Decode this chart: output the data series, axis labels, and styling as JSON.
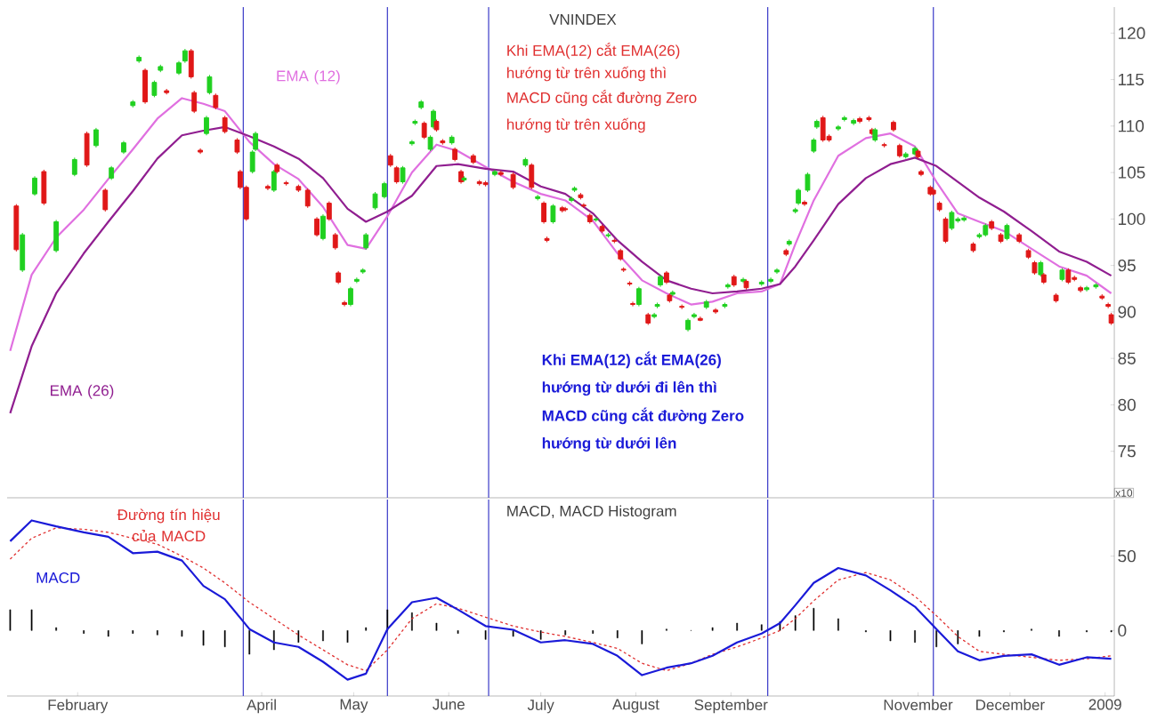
{
  "chart_data": [
    {
      "type": "candlestick",
      "title": "VNINDEX",
      "ylabel": "x10",
      "x": [
        "2008-01-12",
        "2008-01-14",
        "2008-01-18",
        "2008-01-21",
        "2008-01-25",
        "2008-01-31",
        "2008-02-04",
        "2008-02-07",
        "2008-02-10",
        "2008-02-12",
        "2008-02-16",
        "2008-02-19",
        "2008-02-21",
        "2008-02-23",
        "2008-02-26",
        "2008-02-28",
        "2008-03-01",
        "2008-03-05",
        "2008-03-07",
        "2008-03-09",
        "2008-03-10",
        "2008-03-12",
        "2008-03-14",
        "2008-03-15",
        "2008-03-17",
        "2008-03-20",
        "2008-03-24",
        "2008-03-25",
        "2008-03-27",
        "2008-03-29",
        "2008-03-30",
        "2008-04-03",
        "2008-04-05",
        "2008-04-06",
        "2008-04-09",
        "2008-04-13",
        "2008-04-16",
        "2008-04-19",
        "2008-04-21",
        "2008-04-23",
        "2008-04-25",
        "2008-04-26",
        "2008-04-28",
        "2008-04-30",
        "2008-05-02",
        "2008-05-04",
        "2008-05-05",
        "2008-05-08",
        "2008-05-11",
        "2008-05-13",
        "2008-05-15",
        "2008-05-17",
        "2008-05-20",
        "2008-05-21",
        "2008-05-23",
        "2008-05-24",
        "2008-05-26",
        "2008-05-27",
        "2008-05-28",
        "2008-05-30",
        "2008-06-02",
        "2008-06-03",
        "2008-06-05",
        "2008-06-06",
        "2008-06-09",
        "2008-06-11",
        "2008-06-13",
        "2008-06-16",
        "2008-06-18",
        "2008-06-22",
        "2008-06-26",
        "2008-06-28",
        "2008-06-30",
        "2008-07-02",
        "2008-07-03",
        "2008-07-05",
        "2008-07-08",
        "2008-07-09",
        "2008-07-11",
        "2008-07-12",
        "2008-07-14",
        "2008-07-15",
        "2008-07-17",
        "2008-07-19",
        "2008-07-21",
        "2008-07-23",
        "2008-07-25",
        "2008-07-27",
        "2008-07-28",
        "2008-07-30",
        "2008-07-31",
        "2008-08-02",
        "2008-08-05",
        "2008-08-07",
        "2008-08-08",
        "2008-08-09",
        "2008-08-11",
        "2008-08-12",
        "2008-08-13",
        "2008-08-16",
        "2008-08-18",
        "2008-08-20",
        "2008-08-22",
        "2008-08-24",
        "2008-08-27",
        "2008-08-30",
        "2008-08-31",
        "2008-09-02",
        "2008-09-05",
        "2008-09-06",
        "2008-09-11",
        "2008-09-14",
        "2008-09-16",
        "2008-09-19",
        "2008-09-20",
        "2008-09-22",
        "2008-09-23",
        "2008-09-25",
        "2008-09-26",
        "2008-09-28",
        "2008-09-29",
        "2008-10-01",
        "2008-10-03",
        "2008-10-06",
        "2008-10-08",
        "2008-10-11",
        "2008-10-13",
        "2008-10-16",
        "2008-10-17",
        "2008-10-18",
        "2008-10-21",
        "2008-10-24",
        "2008-10-26",
        "2008-10-28",
        "2008-10-31",
        "2008-11-01",
        "2008-11-02",
        "2008-11-05",
        "2008-11-06",
        "2008-11-08",
        "2008-11-10",
        "2008-11-12",
        "2008-11-14",
        "2008-11-16",
        "2008-11-19",
        "2008-11-21",
        "2008-11-23",
        "2008-11-25",
        "2008-11-28",
        "2008-11-30",
        "2008-12-04",
        "2008-12-07",
        "2008-12-09",
        "2008-12-11",
        "2008-12-12",
        "2008-12-16",
        "2008-12-18",
        "2008-12-20",
        "2008-12-22",
        "2008-12-24",
        "2008-12-26",
        "2008-12-29",
        "2008-12-31",
        "2009-01-02",
        "2009-01-03"
      ],
      "ohlc": [
        [
          101.4,
          101.6,
          96.5,
          96.7
        ],
        [
          94.5,
          98.5,
          94.3,
          98.3
        ],
        [
          102.7,
          104.6,
          102.5,
          104.4
        ],
        [
          105.1,
          105.3,
          101.5,
          101.7
        ],
        [
          96.6,
          99.9,
          96.4,
          99.7
        ],
        [
          104.8,
          106.6,
          104.6,
          106.4
        ],
        [
          109.2,
          109.4,
          105.6,
          105.8
        ],
        [
          107.9,
          109.8,
          107.7,
          109.6
        ],
        [
          103.1,
          103.3,
          100.8,
          101
        ],
        [
          104.4,
          105.7,
          104.2,
          105.5
        ],
        [
          107.2,
          108.4,
          107,
          108.2
        ],
        [
          112.2,
          112.8,
          112,
          112.6
        ],
        [
          117,
          117.6,
          116.8,
          117.4
        ],
        [
          116,
          116.2,
          112.4,
          112.6
        ],
        [
          113.3,
          114.9,
          113.1,
          114.7
        ],
        [
          116,
          116.6,
          115.8,
          116.4
        ],
        [
          113.8,
          114,
          113.4,
          113.6
        ],
        [
          115.7,
          117,
          115.5,
          116.8
        ],
        [
          117,
          118.3,
          116.8,
          118.1
        ],
        [
          118.1,
          118.3,
          115.1,
          115.3
        ],
        [
          113.6,
          113.8,
          111.4,
          111.6
        ],
        [
          107.4,
          107.6,
          107,
          107.2
        ],
        [
          109.2,
          111.1,
          109,
          110.9
        ],
        [
          113.6,
          115.5,
          113.4,
          115.3
        ],
        [
          113.3,
          113.5,
          111.8,
          112
        ],
        [
          110.9,
          111.1,
          109.2,
          109.4
        ],
        [
          108.5,
          108.7,
          107,
          107.2
        ],
        [
          105.1,
          105.3,
          103.2,
          103.4
        ],
        [
          103.4,
          103.6,
          99.8,
          100
        ],
        [
          105.1,
          107.4,
          104.9,
          107.2
        ],
        [
          107.5,
          109.4,
          107.3,
          109.2
        ],
        [
          103.5,
          103.7,
          103.1,
          103.3
        ],
        [
          103.1,
          105.3,
          102.9,
          105.1
        ],
        [
          105.8,
          106,
          104.9,
          105.1
        ],
        [
          103.9,
          104.1,
          103.6,
          103.8
        ],
        [
          103.5,
          103.7,
          102.9,
          103.1
        ],
        [
          103.1,
          103.3,
          101.2,
          101.4
        ],
        [
          100,
          100.2,
          98.1,
          98.3
        ],
        [
          97.9,
          100.5,
          97.7,
          100.3
        ],
        [
          101.7,
          101.9,
          99.8,
          100
        ],
        [
          98.3,
          98.5,
          96.7,
          96.9
        ],
        [
          94.2,
          94.4,
          93,
          93.2
        ],
        [
          91,
          91.2,
          90.6,
          90.8
        ],
        [
          90.8,
          92.7,
          90.6,
          92.5
        ],
        [
          93.3,
          93.7,
          93.1,
          93.5
        ],
        [
          94.3,
          94.7,
          94.1,
          94.5
        ],
        [
          96.9,
          98.5,
          96.7,
          98.3
        ],
        [
          101.2,
          102.9,
          101,
          102.7
        ],
        [
          102.4,
          104,
          102.2,
          103.8
        ],
        [
          106.8,
          107,
          105.6,
          105.8
        ],
        [
          105.5,
          105.7,
          103.8,
          104
        ],
        [
          104,
          105.7,
          103.8,
          105.5
        ],
        [
          108.1,
          108.5,
          107.9,
          108.3
        ],
        [
          110.3,
          110.7,
          110.1,
          110.5
        ],
        [
          112,
          112.8,
          111.8,
          112.6
        ],
        [
          110.3,
          110.5,
          108.6,
          108.8
        ],
        [
          107.5,
          109,
          107.3,
          108.8
        ],
        [
          109.9,
          111.8,
          109.7,
          111.6
        ],
        [
          110.5,
          110.7,
          109.4,
          109.6
        ],
        [
          108.4,
          108.6,
          108,
          108.2
        ],
        [
          108.2,
          109,
          108,
          108.8
        ],
        [
          107.5,
          107.7,
          106.2,
          106.4
        ],
        [
          105.1,
          105.3,
          103.8,
          104
        ],
        [
          104.2,
          104.6,
          104,
          104.4
        ],
        [
          106.8,
          107,
          105.9,
          106.1
        ],
        [
          104,
          104.2,
          103.6,
          103.8
        ],
        [
          103.9,
          104.1,
          103.5,
          103.7
        ],
        [
          104.8,
          105.3,
          104.6,
          105.1
        ],
        [
          105,
          105.2,
          104.6,
          104.8
        ],
        [
          104.8,
          105,
          103.2,
          103.4
        ],
        [
          105.8,
          106.6,
          105.6,
          106.4
        ],
        [
          105.8,
          106,
          103.2,
          103.4
        ],
        [
          102.2,
          102.6,
          102,
          102.4
        ],
        [
          101.7,
          101.9,
          99.5,
          99.7
        ],
        [
          97.9,
          98.1,
          97.5,
          97.7
        ],
        [
          99.7,
          101.6,
          99.5,
          101.4
        ],
        [
          101.2,
          101.4,
          100.7,
          100.9
        ],
        [
          101.1,
          101.3,
          100.8,
          101
        ],
        [
          102,
          102.4,
          101.8,
          102.2
        ],
        [
          103.1,
          103.5,
          102.9,
          103.3
        ],
        [
          102.6,
          102.8,
          102.1,
          102.3
        ],
        [
          101.5,
          101.7,
          101.2,
          101.4
        ],
        [
          100.4,
          100.6,
          99.5,
          99.7
        ],
        [
          99.9,
          100.2,
          99.7,
          100
        ],
        [
          99.2,
          99.4,
          98.5,
          98.7
        ],
        [
          98.2,
          98.5,
          98,
          98.3
        ],
        [
          97.7,
          97.9,
          97.4,
          97.6
        ],
        [
          96.6,
          96.8,
          95.5,
          95.7
        ],
        [
          94.6,
          94.8,
          94.3,
          94.5
        ],
        [
          93.1,
          93.3,
          92.8,
          93
        ],
        [
          90.9,
          91.1,
          90.6,
          90.8
        ],
        [
          90.8,
          92.7,
          90.6,
          92.5
        ],
        [
          89.7,
          89.9,
          88.6,
          88.8
        ],
        [
          89.5,
          89.9,
          89.3,
          89.7
        ],
        [
          90.6,
          91,
          90.4,
          90.8
        ],
        [
          92.9,
          94,
          92.7,
          93.8
        ],
        [
          94.2,
          94.4,
          93,
          93.2
        ],
        [
          91.8,
          92,
          91,
          91.2
        ],
        [
          91.9,
          92.3,
          91.7,
          92.1
        ],
        [
          90.6,
          90.8,
          90.3,
          90.5
        ],
        [
          88.1,
          89.3,
          87.9,
          89.1
        ],
        [
          89.5,
          89.9,
          89.3,
          89.7
        ],
        [
          89.3,
          89.5,
          89,
          89.1
        ],
        [
          90.5,
          91.3,
          90.3,
          91.1
        ],
        [
          90.2,
          90.4,
          89.8,
          90
        ],
        [
          90.6,
          91,
          90.4,
          90.8
        ],
        [
          92.7,
          93.1,
          92.5,
          92.9
        ],
        [
          93.8,
          94,
          92.7,
          92.9
        ],
        [
          93.3,
          93.7,
          93.1,
          93.5
        ],
        [
          93.3,
          93.5,
          92.4,
          92.6
        ],
        [
          93,
          93.4,
          92.8,
          93.2
        ],
        [
          93.3,
          93.7,
          93.1,
          93.5
        ],
        [
          94.3,
          94.7,
          94.1,
          94.5
        ],
        [
          96.6,
          96.8,
          96,
          96.2
        ],
        [
          97.3,
          97.8,
          97.1,
          97.6
        ],
        [
          100.8,
          101.2,
          100.6,
          101
        ],
        [
          101.7,
          103.3,
          101.5,
          103.1
        ],
        [
          101.8,
          102,
          101.4,
          101.6
        ],
        [
          103.1,
          105,
          102.9,
          104.8
        ],
        [
          107.3,
          108.7,
          107.1,
          108.5
        ],
        [
          109.9,
          110.7,
          109.7,
          110.5
        ],
        [
          110.9,
          111.1,
          108.3,
          108.5
        ],
        [
          108.9,
          109.1,
          108.3,
          108.5
        ],
        [
          109.7,
          110.1,
          109.5,
          109.9
        ],
        [
          110.7,
          111.1,
          110.5,
          110.9
        ],
        [
          110.3,
          110.8,
          110.1,
          110.6
        ],
        [
          110.8,
          111,
          110.3,
          110.5
        ],
        [
          110.9,
          111.1,
          110.5,
          110.7
        ],
        [
          109.6,
          109.8,
          109,
          109.2
        ],
        [
          108.5,
          109.8,
          108.3,
          109.6
        ],
        [
          108,
          108.2,
          107.7,
          107.9
        ],
        [
          110.4,
          110.6,
          109.4,
          109.6
        ],
        [
          107.9,
          108.1,
          106.6,
          106.8
        ],
        [
          106.7,
          107.2,
          106.5,
          107
        ],
        [
          107,
          107.8,
          106.8,
          107.6
        ],
        [
          107.3,
          107.5,
          106.5,
          106.7
        ],
        [
          105.1,
          105.3,
          104.6,
          104.8
        ],
        [
          103.4,
          103.6,
          102.5,
          102.7
        ],
        [
          103.1,
          103.3,
          102.5,
          102.7
        ],
        [
          101.7,
          101.9,
          100.8,
          101
        ],
        [
          100,
          100.2,
          97.4,
          97.6
        ],
        [
          99,
          100.9,
          98.8,
          100.7
        ],
        [
          99.8,
          100.2,
          99.6,
          100
        ],
        [
          99.9,
          100.3,
          99.7,
          100.1
        ],
        [
          97.3,
          97.5,
          96.4,
          96.6
        ],
        [
          98.1,
          98.5,
          97.9,
          98.3
        ],
        [
          98.3,
          99.5,
          98.1,
          99.3
        ],
        [
          99.7,
          99.9,
          98.8,
          99
        ],
        [
          98.3,
          98.5,
          97.4,
          97.6
        ],
        [
          97.9,
          99.5,
          97.7,
          99.3
        ],
        [
          98.3,
          98.5,
          97.4,
          97.6
        ],
        [
          96.6,
          96.8,
          95.7,
          95.9
        ],
        [
          95.3,
          95.5,
          94,
          94.2
        ],
        [
          94,
          95.5,
          93.8,
          95.3
        ],
        [
          94,
          94.2,
          93,
          93.2
        ],
        [
          91.8,
          92,
          91,
          91.2
        ],
        [
          93.5,
          94.7,
          93.3,
          94.5
        ],
        [
          94.5,
          94.7,
          93,
          93.2
        ],
        [
          93.7,
          93.9,
          93.3,
          93.5
        ],
        [
          92.6,
          92.8,
          92.1,
          92.3
        ],
        [
          92.4,
          92.8,
          92.2,
          92.6
        ],
        [
          92.7,
          93.1,
          92.5,
          92.9
        ],
        [
          91.7,
          91.9,
          91.3,
          91.5
        ],
        [
          90.8,
          91,
          90.4,
          90.6
        ],
        [
          89.7,
          89.9,
          88.6,
          88.8
        ]
      ],
      "colors": [
        "#e01818",
        "#20d020",
        "#20d020",
        "#e01818",
        "#20d020",
        "#20d020",
        "#e01818",
        "#20d020",
        "#e01818",
        "#20d020",
        "#20d020",
        "#20d020",
        "#20d020",
        "#e01818",
        "#20d020",
        "#20d020",
        "#e01818",
        "#20d020",
        "#20d020",
        "#e01818",
        "#e01818",
        "#e01818",
        "#20d020",
        "#20d020",
        "#e01818",
        "#e01818",
        "#e01818",
        "#e01818",
        "#e01818",
        "#20d020",
        "#20d020",
        "#e01818",
        "#20d020",
        "#e01818",
        "#e01818",
        "#e01818",
        "#e01818",
        "#e01818",
        "#20d020",
        "#e01818",
        "#e01818",
        "#e01818",
        "#e01818",
        "#20d020",
        "#20d020",
        "#20d020",
        "#20d020",
        "#20d020",
        "#20d020",
        "#e01818",
        "#e01818",
        "#20d020",
        "#20d020",
        "#20d020",
        "#20d020",
        "#e01818",
        "#20d020",
        "#20d020",
        "#e01818",
        "#e01818",
        "#20d020",
        "#e01818",
        "#e01818",
        "#20d020",
        "#e01818",
        "#e01818",
        "#e01818",
        "#20d020",
        "#e01818",
        "#e01818",
        "#20d020",
        "#e01818",
        "#20d020",
        "#e01818",
        "#e01818",
        "#20d020",
        "#e01818",
        "#e01818",
        "#20d020",
        "#20d020",
        "#e01818",
        "#e01818",
        "#e01818",
        "#20d020",
        "#e01818",
        "#20d020",
        "#e01818",
        "#e01818",
        "#e01818",
        "#e01818",
        "#e01818",
        "#20d020",
        "#e01818",
        "#20d020",
        "#20d020",
        "#20d020",
        "#e01818",
        "#e01818",
        "#20d020",
        "#e01818",
        "#20d020",
        "#20d020",
        "#e01818",
        "#20d020",
        "#e01818",
        "#20d020",
        "#20d020",
        "#e01818",
        "#20d020",
        "#e01818",
        "#20d020",
        "#20d020",
        "#20d020",
        "#e01818",
        "#20d020",
        "#20d020",
        "#20d020",
        "#e01818",
        "#20d020",
        "#20d020",
        "#20d020",
        "#e01818",
        "#e01818",
        "#20d020",
        "#20d020",
        "#20d020",
        "#e01818",
        "#e01818",
        "#e01818",
        "#20d020",
        "#e01818",
        "#e01818",
        "#e01818",
        "#20d020",
        "#20d020",
        "#e01818",
        "#e01818",
        "#e01818",
        "#e01818",
        "#e01818",
        "#e01818",
        "#20d020",
        "#20d020",
        "#20d020",
        "#e01818",
        "#20d020",
        "#20d020",
        "#e01818",
        "#e01818",
        "#20d020",
        "#e01818",
        "#e01818",
        "#e01818",
        "#20d020",
        "#e01818",
        "#e01818",
        "#20d020",
        "#e01818",
        "#e01818",
        "#e01818",
        "#20d020",
        "#20d020",
        "#e01818",
        "#e01818",
        "#e01818"
      ],
      "series": [
        {
          "name": "EMA (12)",
          "type": "line",
          "color": "#e070e0",
          "x": [
            "2008-01-10",
            "2008-01-17",
            "2008-01-25",
            "2008-02-03",
            "2008-02-11",
            "2008-02-19",
            "2008-02-27",
            "2008-03-06",
            "2008-03-13",
            "2008-03-20",
            "2008-03-28",
            "2008-04-05",
            "2008-04-13",
            "2008-04-21",
            "2008-04-29",
            "2008-05-05",
            "2008-05-12",
            "2008-05-20",
            "2008-05-28",
            "2008-06-04",
            "2008-06-13",
            "2008-06-22",
            "2008-07-01",
            "2008-07-09",
            "2008-07-18",
            "2008-07-26",
            "2008-08-03",
            "2008-08-11",
            "2008-08-19",
            "2008-08-26",
            "2008-09-03",
            "2008-09-11",
            "2008-09-17",
            "2008-09-22",
            "2008-09-28",
            "2008-10-06",
            "2008-10-15",
            "2008-10-23",
            "2008-10-31",
            "2008-11-07",
            "2008-11-14",
            "2008-11-21",
            "2008-11-29",
            "2008-12-08",
            "2008-12-17",
            "2008-12-26",
            "2009-01-03"
          ],
          "values": [
            85.8,
            94,
            98,
            101,
            104.3,
            107.5,
            110.8,
            113,
            112.4,
            111.6,
            108.3,
            105.9,
            104.3,
            101.3,
            97.2,
            96.8,
            100.3,
            105,
            108,
            107.3,
            105.6,
            104,
            102.7,
            102,
            99.8,
            96.3,
            93.4,
            92,
            90.8,
            91.1,
            92,
            92.2,
            93,
            97.3,
            102,
            106.8,
            108.7,
            109.2,
            107.8,
            104,
            100.6,
            99.7,
            98.7,
            96.8,
            94.9,
            93.9,
            92
          ]
        },
        {
          "name": "EMA (26)",
          "type": "line",
          "color": "#901e90",
          "x": [
            "2008-01-10",
            "2008-01-17",
            "2008-01-25",
            "2008-02-03",
            "2008-02-11",
            "2008-02-19",
            "2008-02-27",
            "2008-03-06",
            "2008-03-13",
            "2008-03-20",
            "2008-03-28",
            "2008-04-05",
            "2008-04-13",
            "2008-04-21",
            "2008-04-29",
            "2008-05-05",
            "2008-05-12",
            "2008-05-20",
            "2008-05-28",
            "2008-06-04",
            "2008-06-13",
            "2008-06-22",
            "2008-07-01",
            "2008-07-09",
            "2008-07-18",
            "2008-07-26",
            "2008-08-03",
            "2008-08-11",
            "2008-08-19",
            "2008-08-26",
            "2008-09-03",
            "2008-09-11",
            "2008-09-17",
            "2008-09-22",
            "2008-09-28",
            "2008-10-06",
            "2008-10-15",
            "2008-10-23",
            "2008-10-31",
            "2008-11-07",
            "2008-11-14",
            "2008-11-21",
            "2008-11-29",
            "2008-12-08",
            "2008-12-17",
            "2008-12-26",
            "2009-01-03"
          ],
          "values": [
            79.1,
            86.3,
            92,
            96.3,
            99.7,
            103,
            106.5,
            109,
            109.5,
            109.9,
            108.9,
            107.8,
            106.5,
            104.4,
            101.1,
            99.7,
            100.8,
            102.5,
            105.7,
            105.9,
            105.4,
            105.1,
            103.5,
            102.7,
            100.6,
            97.7,
            95.4,
            93.4,
            92.5,
            92,
            92.2,
            92.5,
            93,
            94.9,
            97.7,
            101.6,
            104.4,
            105.9,
            106.6,
            105.7,
            104,
            102.3,
            100.8,
            98.7,
            96.5,
            95.4,
            93.9
          ]
        }
      ],
      "xlim": [
        "2008-01-09",
        "2009-01-04"
      ],
      "ylim": [
        70,
        122.8
      ],
      "yticks": [
        75,
        80,
        85,
        90,
        95,
        100,
        105,
        110,
        115,
        120
      ],
      "tick_labels": "y",
      "ref_lines": [
        {
          "axis": "x",
          "value": "2008-03-26",
          "color": "#3a3ac8"
        },
        {
          "axis": "x",
          "value": "2008-05-12",
          "color": "#3a3ac8"
        },
        {
          "axis": "x",
          "value": "2008-06-14",
          "color": "#3a3ac8"
        },
        {
          "axis": "x",
          "value": "2008-09-13",
          "color": "#3a3ac8"
        },
        {
          "axis": "x",
          "value": "2008-11-06",
          "color": "#3a3ac8"
        }
      ],
      "annotations": [
        "Khi EMA(12) cắt EMA(26)",
        "hướng từ trên xuống thì",
        "MACD cũng cắt đường Zero",
        "hướng từ trên xuống",
        "Khi EMA(12) cắt EMA(26)",
        "hướng từ dưới đi lên thì",
        "MACD cũng cắt đường Zero",
        "hướng từ dưới lên"
      ]
    },
    {
      "type": "line",
      "title": "MACD, MACD Histogram",
      "x": [
        "2008-01-10",
        "2008-01-17",
        "2008-01-25",
        "2008-02-03",
        "2008-02-11",
        "2008-02-19",
        "2008-02-27",
        "2008-03-06",
        "2008-03-13",
        "2008-03-20",
        "2008-03-28",
        "2008-04-05",
        "2008-04-13",
        "2008-04-21",
        "2008-04-29",
        "2008-05-05",
        "2008-05-12",
        "2008-05-20",
        "2008-05-28",
        "2008-06-04",
        "2008-06-13",
        "2008-06-22",
        "2008-07-01",
        "2008-07-09",
        "2008-07-18",
        "2008-07-26",
        "2008-08-03",
        "2008-08-11",
        "2008-08-19",
        "2008-08-26",
        "2008-09-03",
        "2008-09-11",
        "2008-09-17",
        "2008-09-22",
        "2008-09-28",
        "2008-10-06",
        "2008-10-15",
        "2008-10-23",
        "2008-10-31",
        "2008-11-07",
        "2008-11-14",
        "2008-11-21",
        "2008-11-29",
        "2008-12-08",
        "2008-12-17",
        "2008-12-26",
        "2009-01-03"
      ],
      "series": [
        {
          "type": "bar",
          "color": "#000000",
          "values": [
            14,
            14,
            2,
            -2,
            -4,
            -2,
            -3,
            -4,
            -10,
            -11,
            -16,
            -13,
            -8,
            -7,
            -8,
            2,
            14,
            12,
            5,
            -2,
            -6,
            -4,
            -6,
            -3,
            -2,
            -5,
            -9,
            1,
            0,
            2,
            5,
            4,
            6,
            10,
            15,
            8,
            -1,
            -7,
            -8,
            -11,
            -9,
            -4,
            -1,
            1,
            -4,
            -1,
            -1
          ]
        },
        {
          "name": "Đường tín hiệu của MACD",
          "type": "line",
          "color": "#e03030",
          "line_style": "dashed",
          "values": [
            48,
            62,
            69,
            68,
            66,
            62,
            58,
            50,
            42,
            32,
            19,
            8,
            -3,
            -13,
            -23,
            -27,
            -13,
            8,
            18,
            15,
            9,
            3,
            -1,
            -4,
            -8,
            -12,
            -22,
            -27,
            -22,
            -16,
            -11,
            -5,
            0,
            8,
            20,
            34,
            39,
            34,
            23,
            10,
            -4,
            -14,
            -16,
            -18,
            -20,
            -19,
            -17
          ]
        },
        {
          "name": "MACD",
          "type": "line",
          "color": "#1a1ad8",
          "values": [
            60,
            74,
            70,
            66,
            63,
            52,
            53,
            47,
            30,
            21,
            1,
            -8,
            -11,
            -21,
            -33,
            -29,
            1,
            19,
            22,
            14,
            3,
            0.5,
            -8,
            -6.5,
            -9,
            -17,
            -30,
            -25,
            -22,
            -17,
            -8,
            -2,
            5,
            17,
            32,
            42,
            37,
            27,
            16,
            1,
            -14,
            -20,
            -17,
            -16,
            -23,
            -18,
            -19
          ]
        }
      ],
      "xlim": [
        "2008-01-09",
        "2009-01-04"
      ],
      "ylim": [
        -44,
        88
      ],
      "yticks": [
        0,
        50
      ],
      "xticks": [
        {
          "value": "2008-02-01",
          "label": "February"
        },
        {
          "value": "2008-04-01",
          "label": "April"
        },
        {
          "value": "2008-05-01",
          "label": "May"
        },
        {
          "value": "2008-06-01",
          "label": "June"
        },
        {
          "value": "2008-07-01",
          "label": "July"
        },
        {
          "value": "2008-08-01",
          "label": "August"
        },
        {
          "value": "2008-09-01",
          "label": "September"
        },
        {
          "value": "2008-11-01",
          "label": "November"
        },
        {
          "value": "2008-12-01",
          "label": "December"
        },
        {
          "value": "2009-01-01",
          "label": "2009"
        }
      ],
      "ref_lines": [
        {
          "axis": "x",
          "value": "2008-03-26",
          "color": "#3a3ac8"
        },
        {
          "axis": "x",
          "value": "2008-05-12",
          "color": "#3a3ac8"
        },
        {
          "axis": "x",
          "value": "2008-06-14",
          "color": "#3a3ac8"
        },
        {
          "axis": "x",
          "value": "2008-09-13",
          "color": "#3a3ac8"
        },
        {
          "axis": "x",
          "value": "2008-11-06",
          "color": "#3a3ac8"
        }
      ]
    }
  ]
}
